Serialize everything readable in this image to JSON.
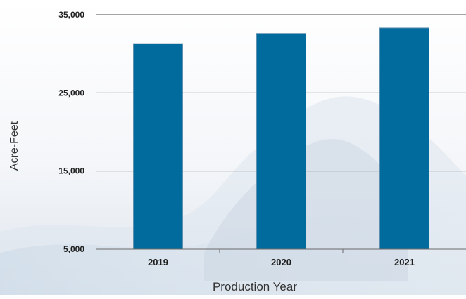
{
  "chart_data": {
    "type": "bar",
    "categories": [
      "2019",
      "2020",
      "2021"
    ],
    "values": [
      31300,
      32600,
      33300
    ],
    "xlabel": "Production Year",
    "ylabel": "Acre-Feet",
    "ylim": [
      5000,
      35000
    ],
    "yticks": [
      5000,
      15000,
      25000,
      35000
    ],
    "ytick_labels": [
      "5,000",
      "15,000",
      "25,000",
      "35,000"
    ],
    "grid": true,
    "legend": "none",
    "bar_color": "#006b9c"
  }
}
